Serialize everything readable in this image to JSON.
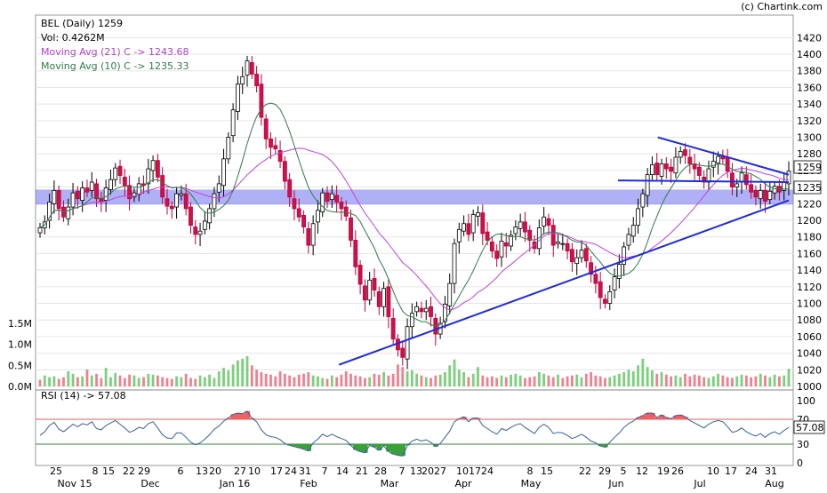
{
  "chart_data": {
    "type": "candlestick",
    "title": "BEL (Daily) 1259",
    "credit": "(c) Chartink.com",
    "volume_label": "Vol: 0.4262M",
    "ma21": {
      "label": "Moving Avg (21) C -> 1243.68",
      "value": 1243.68
    },
    "ma10": {
      "label": "Moving Avg (10) C -> 1235.33",
      "value": 1235.33
    },
    "last_price": "1259",
    "ma_price_tag": "1235",
    "price_ylim": [
      1000,
      1430
    ],
    "price_ticks": [
      "1000",
      "1020",
      "1040",
      "1060",
      "1080",
      "1100",
      "1120",
      "1140",
      "1160",
      "1180",
      "1200",
      "1220",
      "1240",
      "1260",
      "1280",
      "1300",
      "1320",
      "1340",
      "1360",
      "1380",
      "1400",
      "1420"
    ],
    "volume_ticks": [
      "0.0M",
      "0.5M",
      "1.0M",
      "1.5M"
    ],
    "volume_ylim": [
      0,
      1.6
    ],
    "rsi": {
      "label": "RSI (14) -> 57.08",
      "value": 57.08,
      "ticks": [
        "0",
        "30",
        "70",
        "100"
      ],
      "upper": 70,
      "lower": 30
    },
    "support_band": [
      1219,
      1237
    ],
    "x_day_labels": [
      "25",
      "8",
      "15",
      "22",
      "29",
      "6",
      "13",
      "20",
      "27",
      "10",
      "17",
      "24",
      "31",
      "7",
      "14",
      "21",
      "28",
      "7",
      "13",
      "2027",
      "1017",
      "24",
      "8",
      "15",
      "22",
      "29",
      "5",
      "12",
      "19",
      "26",
      "10",
      "17",
      "24",
      "31"
    ],
    "x_month_labels": [
      "Nov 15",
      "Dec",
      "Jan 16",
      "Feb",
      "Mar",
      "Apr",
      "May",
      "Jun",
      "Jul",
      "Aug"
    ],
    "trendlines": [
      {
        "name": "upper-descending",
        "from": [
          "2016-06-20",
          1300
        ],
        "to": [
          "2016-08-05",
          1255
        ]
      },
      {
        "name": "lower-ascending",
        "from": [
          "2016-02-29",
          1026
        ],
        "to": [
          "2016-08-05",
          1224
        ]
      },
      {
        "name": "horizontal",
        "from": [
          "2016-06-06",
          1248
        ],
        "to": [
          "2016-08-05",
          1246
        ]
      }
    ],
    "close_series": [
      1191,
      1198,
      1222,
      1236,
      1214,
      1204,
      1216,
      1233,
      1226,
      1239,
      1234,
      1246,
      1226,
      1222,
      1239,
      1249,
      1263,
      1254,
      1242,
      1226,
      1233,
      1244,
      1242,
      1262,
      1272,
      1252,
      1228,
      1217,
      1214,
      1232,
      1232,
      1214,
      1194,
      1183,
      1187,
      1199,
      1214,
      1232,
      1244,
      1274,
      1300,
      1333,
      1364,
      1373,
      1392,
      1376,
      1362,
      1324,
      1298,
      1288,
      1286,
      1271,
      1247,
      1228,
      1214,
      1204,
      1192,
      1170,
      1196,
      1212,
      1233,
      1223,
      1232,
      1222,
      1214,
      1205,
      1176,
      1144,
      1123,
      1104,
      1128,
      1116,
      1096,
      1118,
      1084,
      1057,
      1044,
      1035,
      1072,
      1088,
      1096,
      1090,
      1094,
      1084,
      1063,
      1076,
      1099,
      1124,
      1172,
      1189,
      1196,
      1183,
      1207,
      1209,
      1184,
      1176,
      1163,
      1154,
      1175,
      1169,
      1182,
      1192,
      1198,
      1186,
      1176,
      1166,
      1191,
      1204,
      1194,
      1170,
      1174,
      1172,
      1163,
      1150,
      1155,
      1164,
      1151,
      1135,
      1124,
      1107,
      1100,
      1114,
      1132,
      1147,
      1168,
      1183,
      1194,
      1214,
      1232,
      1255,
      1267,
      1255,
      1268,
      1262,
      1259,
      1276,
      1283,
      1278,
      1268,
      1262,
      1254,
      1246,
      1262,
      1271,
      1277,
      1274,
      1259,
      1240,
      1244,
      1257,
      1243,
      1234,
      1228,
      1236,
      1223,
      1235,
      1241,
      1234,
      1246,
      1259
    ],
    "volume_series": [
      0.16,
      0.26,
      0.22,
      0.24,
      0.18,
      0.22,
      0.36,
      0.3,
      0.22,
      0.24,
      0.4,
      0.26,
      0.3,
      0.2,
      0.44,
      0.22,
      0.32,
      0.26,
      0.2,
      0.28,
      0.26,
      0.2,
      0.22,
      0.3,
      0.28,
      0.26,
      0.22,
      0.2,
      0.18,
      0.24,
      0.22,
      0.3,
      0.2,
      0.18,
      0.26,
      0.22,
      0.28,
      0.2,
      0.36,
      0.44,
      0.38,
      0.52,
      0.62,
      0.66,
      0.72,
      0.5,
      0.4,
      0.34,
      0.3,
      0.28,
      0.24,
      0.36,
      0.3,
      0.26,
      0.22,
      0.28,
      0.3,
      0.34,
      0.26,
      0.24,
      0.2,
      0.18,
      0.26,
      0.22,
      0.28,
      0.36,
      0.3,
      0.26,
      0.24,
      0.2,
      0.22,
      0.3,
      0.28,
      0.34,
      0.26,
      0.3,
      0.52,
      0.46,
      0.36,
      0.38,
      0.3,
      0.26,
      0.22,
      0.2,
      0.26,
      0.28,
      0.34,
      0.5,
      0.64,
      0.4,
      0.34,
      0.22,
      0.3,
      0.46,
      0.26,
      0.22,
      0.24,
      0.2,
      0.26,
      0.22,
      0.28,
      0.3,
      0.26,
      0.2,
      0.22,
      0.24,
      0.34,
      0.3,
      0.26,
      0.22,
      0.28,
      0.2,
      0.24,
      0.26,
      0.28,
      0.22,
      0.3,
      0.34,
      0.26,
      0.24,
      0.2,
      0.22,
      0.26,
      0.3,
      0.34,
      0.4,
      0.36,
      0.5,
      0.66,
      0.46,
      0.38,
      0.3,
      0.34,
      0.28,
      0.24,
      0.26,
      0.22,
      0.3,
      0.24,
      0.28,
      0.26,
      0.22,
      0.2,
      0.24,
      0.3,
      0.26,
      0.22,
      0.2,
      0.24,
      0.28,
      0.26,
      0.22,
      0.24,
      0.3,
      0.26,
      0.22,
      0.28,
      0.24,
      0.26,
      0.42
    ],
    "rsi_series": [
      44,
      50,
      60,
      65,
      54,
      50,
      56,
      62,
      58,
      63,
      61,
      66,
      55,
      53,
      60,
      64,
      68,
      62,
      56,
      49,
      52,
      57,
      55,
      63,
      66,
      56,
      45,
      40,
      39,
      48,
      48,
      41,
      33,
      29,
      32,
      38,
      45,
      54,
      59,
      67,
      72,
      78,
      80,
      79,
      83,
      72,
      66,
      53,
      45,
      42,
      41,
      37,
      31,
      28,
      26,
      24,
      22,
      19,
      32,
      38,
      46,
      42,
      46,
      42,
      39,
      36,
      28,
      21,
      18,
      16,
      28,
      25,
      20,
      27,
      18,
      14,
      12,
      11,
      28,
      35,
      38,
      35,
      37,
      33,
      26,
      31,
      41,
      51,
      66,
      71,
      74,
      66,
      72,
      72,
      60,
      55,
      50,
      46,
      55,
      52,
      57,
      61,
      63,
      57,
      52,
      47,
      57,
      62,
      57,
      47,
      49,
      48,
      44,
      39,
      42,
      46,
      41,
      35,
      32,
      27,
      25,
      33,
      41,
      48,
      57,
      63,
      67,
      73,
      76,
      80,
      80,
      73,
      77,
      73,
      71,
      76,
      77,
      74,
      68,
      64,
      60,
      56,
      62,
      66,
      68,
      66,
      58,
      49,
      51,
      56,
      50,
      46,
      43,
      47,
      41,
      47,
      50,
      46,
      52,
      57
    ]
  }
}
